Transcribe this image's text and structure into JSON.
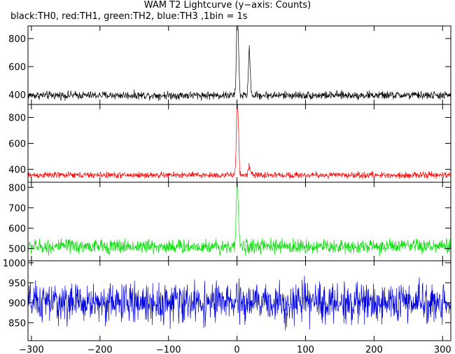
{
  "title": "WAM T2 Lightcurve (y−axis: Counts)",
  "subtitle": "black:TH0, red:TH1, green:TH2, blue:TH3 ,1bin = 1s",
  "chart_data": {
    "type": "line",
    "xlim": [
      -305,
      312
    ],
    "x_ticks": [
      -300,
      -200,
      -100,
      0,
      100,
      200,
      300
    ],
    "x_tick_labels": [
      "−300",
      "−200",
      "−100",
      "0",
      "100",
      "200",
      "300"
    ],
    "panels": [
      {
        "series_name": "TH0",
        "color": "#000000",
        "ylim": [
          330,
          890
        ],
        "y_ticks": [
          400,
          600,
          800
        ],
        "baseline": 395,
        "noise": 18,
        "peaks": [
          {
            "x": 0,
            "y": 880,
            "width": 1.6
          },
          {
            "x": 2,
            "y": 700,
            "width": 1.5
          },
          {
            "x": 18,
            "y": 720,
            "width": 1.8
          }
        ]
      },
      {
        "series_name": "TH1",
        "color": "#ff0000",
        "ylim": [
          300,
          900
        ],
        "y_ticks": [
          400,
          600,
          800
        ],
        "baseline": 355,
        "noise": 15,
        "peaks": [
          {
            "x": 0,
            "y": 870,
            "width": 1.6
          },
          {
            "x": 2,
            "y": 650,
            "width": 1.5
          },
          {
            "x": 18,
            "y": 430,
            "width": 1.8
          }
        ]
      },
      {
        "series_name": "TH2",
        "color": "#00dd00",
        "ylim": [
          440,
          825
        ],
        "y_ticks": [
          500,
          600,
          700,
          800
        ],
        "baseline": 510,
        "noise": 22,
        "peaks": [
          {
            "x": 0,
            "y": 820,
            "width": 1.5
          },
          {
            "x": 2,
            "y": 640,
            "width": 1.8
          }
        ]
      },
      {
        "series_name": "TH3",
        "color": "#0000dd",
        "ylim": [
          805,
          1005
        ],
        "y_ticks": [
          850,
          900,
          950,
          1000
        ],
        "baseline": 900,
        "noise": 30,
        "peaks": []
      }
    ]
  }
}
